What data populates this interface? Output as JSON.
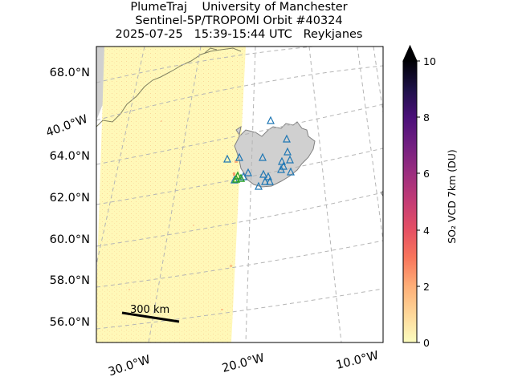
{
  "title": {
    "line1": "PlumeTraj    University of Manchester",
    "line2": "Sentinel-5P/TROPOMI Orbit #40324",
    "line3": "2025-07-25   15:39-15:44 UTC   Reykjanes"
  },
  "map": {
    "lat_labels": [
      "68.0°N",
      "64.0°N",
      "62.0°N",
      "60.0°N",
      "58.0°N",
      "56.0°N"
    ],
    "lon_labels": [
      "40.0°W",
      "30.0°W",
      "20.0°W",
      "10.0°W"
    ],
    "scale_bar_label": "300 km",
    "colors": {
      "swath": "#fff8b8",
      "land": "#d0d0d0",
      "coast": "#808060",
      "volcano_marker": "#1f77b4",
      "vent_marker": "#2ca02c",
      "grid": "#b5b5b5"
    }
  },
  "colorbar": {
    "label": "SO₂ VCD 7km (DU)",
    "ticks": [
      "0",
      "2",
      "4",
      "6",
      "8",
      "10"
    ],
    "colormap": "magma_r",
    "extend": "max"
  }
}
